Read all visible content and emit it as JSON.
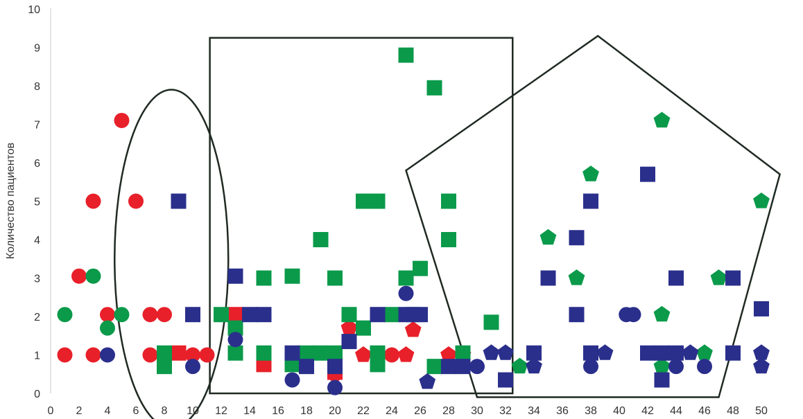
{
  "chart_data": {
    "type": "scatter",
    "title": "",
    "xlabel": "",
    "ylabel": "Количество пациентов",
    "xlim": [
      0,
      50
    ],
    "ylim": [
      0,
      10
    ],
    "x_ticks": [
      0,
      2,
      4,
      6,
      8,
      10,
      12,
      14,
      16,
      18,
      20,
      22,
      24,
      26,
      28,
      30,
      32,
      34,
      36,
      38,
      40,
      42,
      44,
      46,
      48,
      50
    ],
    "y_ticks": [
      0,
      1,
      2,
      3,
      4,
      5,
      6,
      7,
      8,
      9,
      10
    ],
    "grid": false,
    "colors": {
      "red": "#e8202a",
      "green": "#0a9a4a",
      "blue": "#2a2f8c",
      "outline": "#1f2a22"
    },
    "regions": [
      {
        "shape": "ellipse",
        "cx": 8.5,
        "cy": 3.5,
        "rx": 8,
        "ry": 4.4
      },
      {
        "shape": "rectangle",
        "x0": 11.2,
        "x1": 32.5,
        "y0": 0,
        "y1": 9.25
      },
      {
        "shape": "pentagon",
        "points": [
          [
            38.5,
            9.3
          ],
          [
            51.3,
            5.7
          ],
          [
            47,
            -0.1
          ],
          [
            30,
            -0.1
          ],
          [
            25,
            5.8
          ]
        ]
      }
    ],
    "series": [
      {
        "color": "red",
        "marker": "circle",
        "points": [
          [
            1,
            1
          ],
          [
            2,
            3.05
          ],
          [
            3,
            5
          ],
          [
            3,
            1
          ],
          [
            4,
            2.05
          ],
          [
            5,
            7.1
          ],
          [
            6,
            5
          ],
          [
            7,
            2.05
          ],
          [
            7,
            1
          ],
          [
            8,
            2.05
          ],
          [
            10,
            1
          ],
          [
            11,
            1
          ],
          [
            20,
            0.5
          ],
          [
            24,
            1
          ]
        ]
      },
      {
        "color": "red",
        "marker": "square",
        "points": [
          [
            9,
            1.05
          ],
          [
            13,
            2.05
          ],
          [
            15,
            0.75
          ],
          [
            20,
            0.55
          ]
        ]
      },
      {
        "color": "red",
        "marker": "pentagon",
        "points": [
          [
            21,
            1.7
          ],
          [
            22,
            1
          ],
          [
            25,
            1
          ],
          [
            25.5,
            1.65
          ],
          [
            28,
            1
          ],
          [
            29,
            1
          ]
        ]
      },
      {
        "color": "green",
        "marker": "circle",
        "points": [
          [
            1,
            2.05
          ],
          [
            3,
            3.05
          ],
          [
            4,
            1.7
          ],
          [
            5,
            2.05
          ]
        ]
      },
      {
        "color": "green",
        "marker": "square",
        "points": [
          [
            8,
            1.05
          ],
          [
            8,
            0.7
          ],
          [
            12,
            2.05
          ],
          [
            13,
            1.7
          ],
          [
            13,
            1.05
          ],
          [
            15,
            3
          ],
          [
            15,
            1.05
          ],
          [
            17,
            3.05
          ],
          [
            17,
            0.75
          ],
          [
            18,
            1.05
          ],
          [
            19,
            1.05
          ],
          [
            19,
            4
          ],
          [
            20,
            3
          ],
          [
            20,
            1.05
          ],
          [
            21,
            2.05
          ],
          [
            22,
            5
          ],
          [
            22,
            1.7
          ],
          [
            23,
            5
          ],
          [
            23,
            1.05
          ],
          [
            23,
            0.75
          ],
          [
            24,
            2.05
          ],
          [
            25,
            3
          ],
          [
            25,
            8.8
          ],
          [
            25.5,
            2.05
          ],
          [
            26,
            3.25
          ],
          [
            27,
            0.7
          ],
          [
            27,
            7.95
          ],
          [
            28,
            5
          ],
          [
            28,
            4
          ],
          [
            29,
            1.05
          ],
          [
            31,
            1.85
          ]
        ]
      },
      {
        "color": "green",
        "marker": "pentagon",
        "points": [
          [
            33,
            0.7
          ],
          [
            35,
            4.05
          ],
          [
            37,
            3
          ],
          [
            38,
            5.7
          ],
          [
            43,
            7.1
          ],
          [
            43,
            0.7
          ],
          [
            43,
            2.05
          ],
          [
            46,
            1.05
          ],
          [
            47,
            3
          ],
          [
            50,
            5
          ]
        ]
      },
      {
        "color": "blue",
        "marker": "circle",
        "points": [
          [
            4,
            1
          ],
          [
            10,
            0.7
          ],
          [
            13,
            1.4
          ],
          [
            17,
            0.35
          ],
          [
            20,
            0.15
          ],
          [
            25,
            2.6
          ],
          [
            30,
            0.7
          ],
          [
            38,
            0.7
          ],
          [
            40.5,
            2.05
          ],
          [
            41,
            2.05
          ],
          [
            44,
            0.7
          ],
          [
            46,
            0.7
          ]
        ]
      },
      {
        "color": "blue",
        "marker": "square",
        "points": [
          [
            9,
            5
          ],
          [
            10,
            2.05
          ],
          [
            13,
            3.05
          ],
          [
            14,
            2.05
          ],
          [
            15,
            2.05
          ],
          [
            17,
            1.05
          ],
          [
            18,
            0.7
          ],
          [
            20,
            0.7
          ],
          [
            21,
            1.35
          ],
          [
            23,
            2.05
          ],
          [
            25,
            2.05
          ],
          [
            26,
            2.05
          ],
          [
            28,
            0.7
          ],
          [
            29,
            0.7
          ],
          [
            32,
            0.35
          ],
          [
            34,
            1.05
          ],
          [
            35,
            3
          ],
          [
            37,
            4.05
          ],
          [
            37,
            2.05
          ],
          [
            38,
            1.05
          ],
          [
            38,
            5
          ],
          [
            42,
            5.7
          ],
          [
            42,
            1.05
          ],
          [
            43,
            0.35
          ],
          [
            43,
            1.05
          ],
          [
            44,
            1.05
          ],
          [
            44,
            3
          ],
          [
            48,
            3
          ],
          [
            48,
            1.05
          ],
          [
            50,
            2.2
          ]
        ]
      },
      {
        "color": "blue",
        "marker": "pentagon",
        "points": [
          [
            26.5,
            0.3
          ],
          [
            31,
            1.05
          ],
          [
            32,
            1.05
          ],
          [
            34,
            0.7
          ],
          [
            39,
            1.05
          ],
          [
            45,
            1.05
          ],
          [
            50,
            1.05
          ],
          [
            50,
            0.7
          ]
        ]
      }
    ]
  }
}
